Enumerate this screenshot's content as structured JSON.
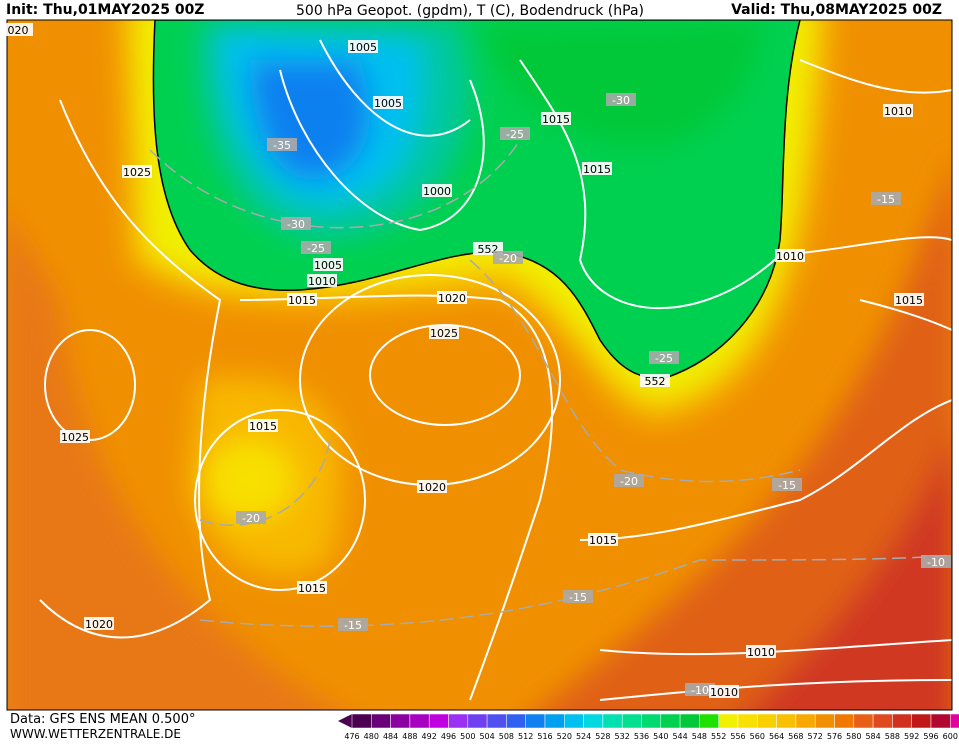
{
  "header": {
    "init": "Init: Thu,01MAY2025 00Z",
    "title": "500 hPa Geopot. (gpdm), T (C), Bodendruck (hPa)",
    "valid": "Valid: Thu,08MAY2025 00Z"
  },
  "footer": {
    "source": "Data: GFS ENS MEAN 0.500°",
    "website": "WWW.WETTERZENTRALE.DE"
  },
  "legend": {
    "labels": [
      476,
      480,
      484,
      488,
      492,
      496,
      500,
      504,
      508,
      512,
      516,
      520,
      524,
      528,
      532,
      536,
      540,
      544,
      548,
      552,
      556,
      560,
      564,
      568,
      572,
      576,
      580,
      584,
      588,
      592,
      596,
      600
    ],
    "colors": [
      "#4b0050",
      "#6a0078",
      "#8a00a0",
      "#a800c0",
      "#c000e0",
      "#9a30f0",
      "#7040f0",
      "#5050f0",
      "#3060f0",
      "#1080f0",
      "#00a0f0",
      "#00c0f0",
      "#00d8e0",
      "#00e0b0",
      "#00e090",
      "#00d870",
      "#00d050",
      "#00c838",
      "#20e000",
      "#f0f000",
      "#f8e000",
      "#f8d000",
      "#f8c000",
      "#f8a800",
      "#f09000",
      "#f07800",
      "#e86018",
      "#e04820",
      "#d03020",
      "#c01818",
      "#b00830",
      "#e000a0"
    ]
  },
  "map": {
    "labels": [
      "020",
      "1005",
      "1005",
      "-35",
      "1025",
      "1000",
      "-30",
      "-25",
      "1005",
      "1010",
      "1015",
      "552",
      "-20",
      "1020",
      "1025",
      "-30",
      "1015",
      "-25",
      "1015",
      "1010",
      "-15",
      "1010",
      "1015",
      "-25",
      "552",
      "1025",
      "1015",
      "-20",
      "1020",
      "-20",
      "-15",
      "1015",
      "-10",
      "1015",
      "-15",
      "-15",
      "1020",
      "1010",
      "-10",
      "1010"
    ]
  }
}
